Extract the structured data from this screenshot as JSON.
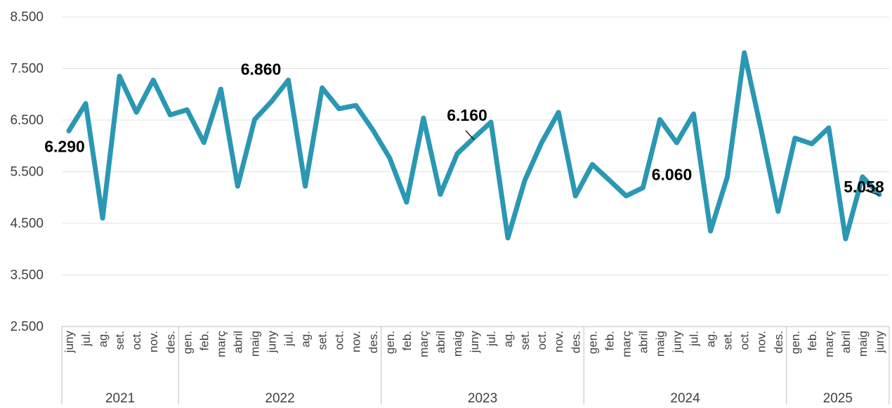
{
  "chart_data": {
    "type": "line",
    "groups": [
      {
        "label": "2021",
        "categories": [
          "juny",
          "jul.",
          "ag.",
          "set.",
          "oct.",
          "nov.",
          "des."
        ]
      },
      {
        "label": "2022",
        "categories": [
          "gen.",
          "feb.",
          "març",
          "abril",
          "maig",
          "juny",
          "jul.",
          "ag.",
          "set.",
          "oct.",
          "nov.",
          "des."
        ]
      },
      {
        "label": "2023",
        "categories": [
          "gen.",
          "feb.",
          "març",
          "abril",
          "maig",
          "juny",
          "jul.",
          "ag.",
          "set.",
          "oct.",
          "nov.",
          "des."
        ]
      },
      {
        "label": "2024",
        "categories": [
          "gen.",
          "feb.",
          "març",
          "abril",
          "maig",
          "juny",
          "jul.",
          "ag.",
          "set.",
          "oct.",
          "nov.",
          "des."
        ]
      },
      {
        "label": "2025",
        "categories": [
          "gen.",
          "feb.",
          "març",
          "abril",
          "maig",
          "juny"
        ]
      }
    ],
    "values": [
      6290,
      6820,
      4600,
      7350,
      6650,
      7275,
      6600,
      6700,
      6065,
      7100,
      5220,
      6510,
      6860,
      7275,
      5220,
      7125,
      6720,
      6785,
      6310,
      5765,
      4910,
      6540,
      5060,
      5850,
      6160,
      6460,
      4215,
      5330,
      6065,
      6650,
      5030,
      5640,
      5340,
      5030,
      5190,
      6510,
      6060,
      6620,
      4350,
      5400,
      7805,
      6310,
      4730,
      6150,
      6040,
      6350,
      4200,
      5400,
      5058
    ],
    "value_labels": [
      "6.290",
      null,
      null,
      null,
      null,
      null,
      null,
      null,
      null,
      null,
      null,
      null,
      "6.860",
      null,
      null,
      null,
      null,
      null,
      null,
      null,
      null,
      null,
      null,
      null,
      "6.160",
      null,
      null,
      null,
      null,
      null,
      null,
      null,
      null,
      null,
      null,
      null,
      "6.060",
      null,
      null,
      null,
      null,
      null,
      null,
      null,
      null,
      null,
      null,
      null,
      "5.058"
    ],
    "color": "#2a97b3",
    "ylim": [
      2500,
      8500
    ],
    "yticks": [
      {
        "value": 2500,
        "label": "2.500"
      },
      {
        "value": 3500,
        "label": "3.500"
      },
      {
        "value": 4500,
        "label": "4.500"
      },
      {
        "value": 5500,
        "label": "5.500"
      },
      {
        "value": 6500,
        "label": "6.500"
      },
      {
        "value": 7500,
        "label": "7.500"
      },
      {
        "value": 8500,
        "label": "8.500"
      }
    ],
    "grid": true
  }
}
